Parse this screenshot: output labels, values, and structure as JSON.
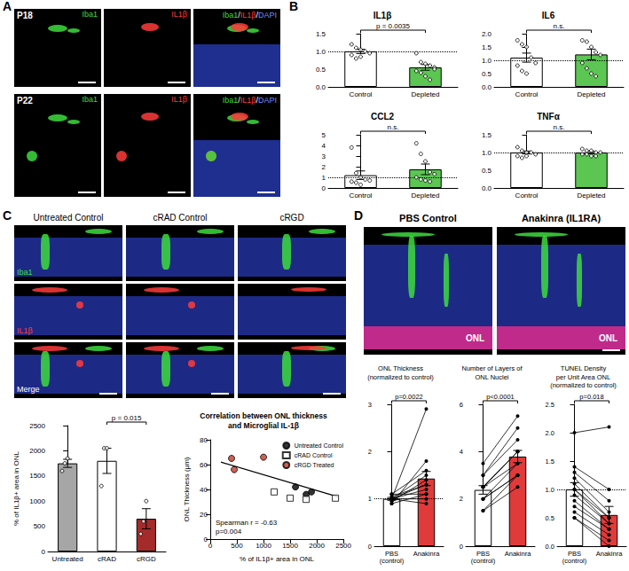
{
  "figure": {
    "panel_labels": [
      "A",
      "B",
      "C",
      "D"
    ],
    "A": {
      "rows": [
        "P18",
        "P22"
      ],
      "channels": [
        "Iba1",
        "IL1β",
        "Iba1/IL1β/DAPI"
      ]
    },
    "C": {
      "columns": [
        "Untreated Control",
        "cRAD Control",
        "cRGD"
      ],
      "rows": [
        "Iba1",
        "IL1β",
        "Merge"
      ]
    },
    "D": {
      "columns": [
        "PBS Control",
        "Anakinra (IL1RA)"
      ],
      "layer_label": "ONL"
    }
  },
  "chart_data": [
    {
      "type": "bar",
      "title": "IL1β",
      "categories": [
        "Control",
        "Depleted"
      ],
      "values": [
        1.0,
        0.55
      ],
      "sem": [
        0.06,
        0.08
      ],
      "points": [
        [
          1.2,
          1.1,
          1.05,
          1.0,
          0.95,
          0.9,
          0.8,
          0.85
        ],
        [
          0.95,
          0.7,
          0.65,
          0.6,
          0.55,
          0.45,
          0.4,
          0.3,
          0.2,
          0.5
        ]
      ],
      "colors": [
        "#ffffff",
        "#5cc653"
      ],
      "ylim": [
        0,
        1.5
      ],
      "yticks": [
        {
          "value": 0,
          "label": "0.0"
        },
        {
          "value": 0.5,
          "label": "0.5"
        },
        {
          "value": 1,
          "label": "1.0"
        },
        {
          "value": 1.5,
          "label": "1.5"
        }
      ],
      "reference_line": 1,
      "annotation": {
        "text": "p = 0.0035",
        "between": [
          "Control",
          "Depleted"
        ]
      }
    },
    {
      "type": "bar",
      "title": "IL6",
      "categories": [
        "Control",
        "Depleted"
      ],
      "values": [
        1.1,
        1.22
      ],
      "sem": [
        0.17,
        0.2
      ],
      "points": [
        [
          1.75,
          1.6,
          1.5,
          1.1,
          0.9,
          0.8,
          0.6,
          0.5
        ],
        [
          1.75,
          1.7,
          1.5,
          1.3,
          1.2,
          0.9,
          0.7,
          0.5,
          0.4
        ]
      ],
      "colors": [
        "#ffffff",
        "#5cc653"
      ],
      "ylim": [
        0,
        2
      ],
      "yticks": [
        {
          "value": 0,
          "label": "0.0"
        },
        {
          "value": 0.5,
          "label": "0.5"
        },
        {
          "value": 1,
          "label": "1.0"
        },
        {
          "value": 1.5,
          "label": "1.5"
        },
        {
          "value": 2,
          "label": "2.0"
        }
      ],
      "reference_line": 1,
      "annotation": {
        "text": "n.s.",
        "between": [
          "Control",
          "Depleted"
        ]
      }
    },
    {
      "type": "bar",
      "title": "CCL2",
      "categories": [
        "Control",
        "Depleted"
      ],
      "values": [
        1.2,
        1.75
      ],
      "sem": [
        0.4,
        0.5
      ],
      "points": [
        [
          3.8,
          1.4,
          1.0,
          0.8,
          0.7,
          0.6,
          0.5,
          0.3
        ],
        [
          4.2,
          3.2,
          2.5,
          1.5,
          1.3,
          1.0,
          0.8,
          0.7,
          0.6
        ]
      ],
      "colors": [
        "#ffffff",
        "#5cc653"
      ],
      "ylim": [
        0,
        5
      ],
      "yticks": [
        0,
        1,
        2,
        3,
        4,
        5
      ],
      "reference_line": 1,
      "annotation": {
        "text": "n.s.",
        "between": [
          "Control",
          "Depleted"
        ]
      }
    },
    {
      "type": "bar",
      "title": "TNFα",
      "categories": [
        "Control",
        "Depleted"
      ],
      "values": [
        1.0,
        1.0
      ],
      "sem": [
        0.04,
        0.03
      ],
      "points": [
        [
          1.15,
          1.05,
          1.0,
          1.0,
          0.95,
          0.9,
          0.85,
          0.9
        ],
        [
          1.1,
          1.05,
          1.05,
          1.0,
          1.0,
          0.95,
          0.95,
          0.9,
          0.9
        ]
      ],
      "colors": [
        "#ffffff",
        "#5cc653"
      ],
      "ylim": [
        0,
        1.5
      ],
      "yticks": [
        {
          "value": 0,
          "label": "0.0"
        },
        {
          "value": 0.5,
          "label": "0.5"
        },
        {
          "value": 1,
          "label": "1.0"
        },
        {
          "value": 1.5,
          "label": "1.5"
        }
      ],
      "reference_line": 1,
      "annotation": {
        "text": "n.s.",
        "between": [
          "Control",
          "Depleted"
        ]
      }
    },
    {
      "type": "bar",
      "ylabel": "% of IL1β+ area in ONL",
      "categories": [
        "Untreated",
        "cRAD",
        "cRGD"
      ],
      "values": [
        1750,
        1800,
        650
      ],
      "sem": [
        80,
        250,
        200
      ],
      "points": [
        [
          1600,
          1750,
          1850
        ],
        [
          1300,
          2050,
          2050
        ],
        [
          350,
          600,
          1000
        ]
      ],
      "colors": [
        "#a6a6a6",
        "#ffffff",
        "#a52a2a"
      ],
      "ylim": [
        0,
        2500
      ],
      "yticks": [
        0,
        500,
        1000,
        1500,
        2000,
        2500
      ],
      "annotation": {
        "text": "p = 0.015",
        "between": [
          "cRAD",
          "cRGD"
        ]
      }
    },
    {
      "type": "scatter",
      "title": "Correlation between ONL thickness\nand Microglial IL-1β",
      "xlabel": "% of IL1β+ area in ONL",
      "ylabel": "ONL Thickness (µm)",
      "xlim": [
        0,
        2500
      ],
      "xticks": [
        0,
        500,
        1000,
        1500,
        2000,
        2500
      ],
      "ylim": [
        0,
        80
      ],
      "yticks": [
        0,
        20,
        40,
        60,
        80
      ],
      "legend": "top-right",
      "series": [
        {
          "name": "Untreated Control",
          "color": "#000000",
          "marker": "circle",
          "x": [
            1600,
            1800,
            1900
          ],
          "values": [
            42,
            36,
            38
          ]
        },
        {
          "name": "cRAD Control",
          "color": "#ffffff",
          "marker": "square",
          "x": [
            1200,
            1500,
            1800,
            2350
          ],
          "values": [
            38,
            33,
            32,
            33
          ]
        },
        {
          "name": "cRGD Treated",
          "color": "#c0392b",
          "marker": "circle",
          "x": [
            400,
            450,
            1000
          ],
          "values": [
            65,
            56,
            66
          ]
        }
      ],
      "fit_line": {
        "color": "#000000",
        "x": [
          200,
          2400
        ],
        "values": [
          62,
          34
        ]
      },
      "annotation": {
        "text": "Spearman r = -0.63\np=0.004"
      }
    },
    {
      "type": "bar",
      "title": "ONL Thickness\n(normalized to control)",
      "categories": [
        "PBS\n(control)",
        "Anakinra"
      ],
      "values": [
        1.0,
        1.43
      ],
      "sem": [
        0.03,
        0.15
      ],
      "pairs": [
        [
          1.0,
          2.9
        ],
        [
          0.9,
          1.8
        ],
        [
          1.1,
          1.6
        ],
        [
          1.0,
          1.5
        ],
        [
          0.95,
          1.4
        ],
        [
          1.05,
          1.3
        ],
        [
          1.0,
          1.3
        ],
        [
          1.0,
          1.2
        ],
        [
          0.9,
          1.1
        ],
        [
          1.1,
          1.1
        ],
        [
          1.0,
          1.0
        ],
        [
          1.0,
          0.9
        ]
      ],
      "colors": [
        "#ffffff",
        "#e03a3a"
      ],
      "ylim": [
        0,
        3
      ],
      "yticks": [
        0,
        1,
        2,
        3
      ],
      "reference_line": 1,
      "annotation": {
        "text": "p=0.0022",
        "between": [
          "PBS\n(control)",
          "Anakinra"
        ]
      }
    },
    {
      "type": "bar",
      "title": "Number of Layers of\nONL Nuclei",
      "categories": [
        "PBS\n(control)",
        "Anakinra"
      ],
      "values": [
        2.38,
        3.79
      ],
      "sem": [
        0.18,
        0.26
      ],
      "pairs": [
        [
          3.5,
          5.5
        ],
        [
          3,
          5
        ],
        [
          3,
          4.5
        ],
        [
          2.5,
          4
        ],
        [
          2.5,
          4
        ],
        [
          2.5,
          4
        ],
        [
          2.5,
          3.5
        ],
        [
          2,
          3.5
        ],
        [
          2,
          3
        ],
        [
          2,
          3
        ],
        [
          1.5,
          3
        ],
        [
          1.5,
          2.5
        ]
      ],
      "colors": [
        "#ffffff",
        "#e03a3a"
      ],
      "ylim": [
        0,
        6
      ],
      "yticks": [
        0,
        2,
        4,
        6
      ],
      "annotation": {
        "text": "p<0.0001",
        "between": [
          "PBS\n(control)",
          "Anakinra"
        ]
      }
    },
    {
      "type": "bar",
      "title": "TUNEL Density\nper Unit Area ONL\n(normalized to control)",
      "categories": [
        "PBS\n(control)",
        "Anakinra"
      ],
      "values": [
        1.0,
        0.55
      ],
      "sem": [
        0.12,
        0.15
      ],
      "pairs": [
        [
          2.0,
          2.1
        ],
        [
          1.4,
          1.0
        ],
        [
          1.3,
          0.8
        ],
        [
          1.2,
          0.6
        ],
        [
          1.1,
          0.5
        ],
        [
          1.0,
          0.5
        ],
        [
          1.0,
          0.4
        ],
        [
          0.9,
          0.4
        ],
        [
          0.8,
          0.3
        ],
        [
          0.7,
          0.3
        ],
        [
          0.6,
          0.2
        ],
        [
          0.5,
          0.1
        ],
        [
          0.5,
          0.0
        ]
      ],
      "colors": [
        "#ffffff",
        "#e03a3a"
      ],
      "ylim": [
        0,
        2.5
      ],
      "yticks": [
        {
          "value": 0,
          "label": "0.0"
        },
        {
          "value": 0.5,
          "label": "0.5"
        },
        {
          "value": 1,
          "label": "1.0"
        },
        {
          "value": 1.5,
          "label": "1.5"
        },
        {
          "value": 2,
          "label": "2.0"
        },
        {
          "value": 2.5,
          "label": "2.5"
        }
      ],
      "reference_line": 1,
      "annotation": {
        "text": "p=0.018",
        "between": [
          "PBS\n(control)",
          "Anakinra"
        ]
      }
    }
  ]
}
